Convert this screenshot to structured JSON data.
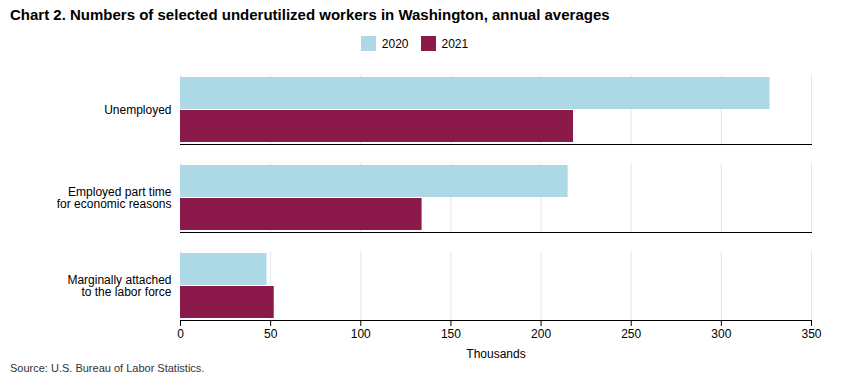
{
  "chart_data": {
    "type": "bar",
    "orientation": "horizontal",
    "title": "Chart 2. Numbers of selected underutilized workers in Washington, annual averages",
    "categories": [
      "Unemployed",
      "Employed part time\nfor economic reasons",
      "Marginally attached\nto the labor force"
    ],
    "series": [
      {
        "name": "2020",
        "color": "#add8e6",
        "values": [
          327,
          215,
          48
        ]
      },
      {
        "name": "2021",
        "color": "#8b1a4a",
        "values": [
          218,
          134,
          52
        ]
      }
    ],
    "xlabel": "Thousands",
    "xlim": [
      0,
      350
    ],
    "xticks": [
      0,
      50,
      100,
      150,
      200,
      250,
      300,
      350
    ],
    "grid": true,
    "legend": "top",
    "annotations": [
      "Source: U.S. Bureau of Labor Statistics."
    ]
  }
}
